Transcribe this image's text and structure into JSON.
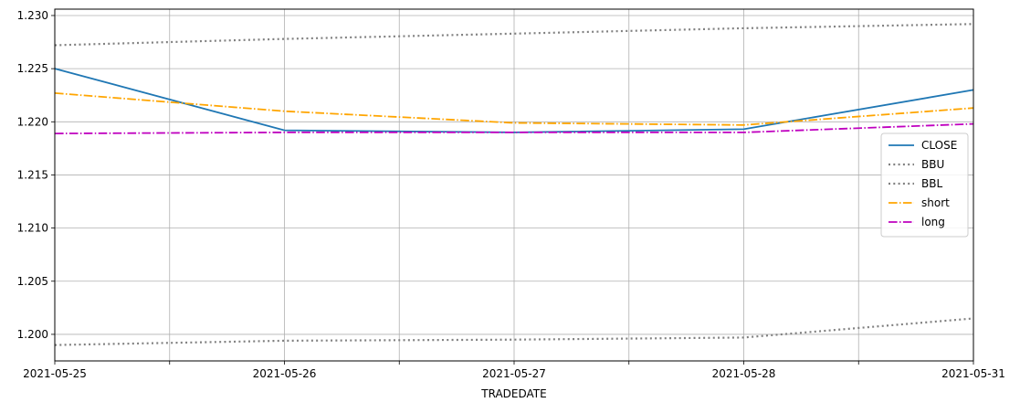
{
  "chart_data": {
    "type": "line",
    "xlabel": "TRADEDATE",
    "x": [
      "2021-05-25",
      "2021-05-26",
      "2021-05-27",
      "2021-05-28",
      "2021-05-31"
    ],
    "x_ticks_labeled": [
      "2021-05-25",
      "2021-05-26",
      "2021-05-27",
      "2021-05-28",
      "2021-05-31"
    ],
    "y_ticks": [
      "1.200",
      "1.205",
      "1.210",
      "1.215",
      "1.220",
      "1.225",
      "1.230"
    ],
    "ylim": [
      1.1975,
      1.2306
    ],
    "grid": true,
    "legend_position": "center-right",
    "series": [
      {
        "name": "CLOSE",
        "color": "#1f77b4",
        "style": "solid",
        "values": [
          1.225,
          1.2192,
          1.219,
          1.2193,
          1.223
        ]
      },
      {
        "name": "BBU",
        "color": "#808080",
        "style": "dotted",
        "values": [
          1.2272,
          1.2278,
          1.2283,
          1.2288,
          1.2292
        ]
      },
      {
        "name": "BBL",
        "color": "#808080",
        "style": "dotted",
        "values": [
          1.199,
          1.1994,
          1.1995,
          1.1997,
          1.2015
        ]
      },
      {
        "name": "short",
        "color": "#ffa500",
        "style": "dashdot",
        "values": [
          1.2227,
          1.221,
          1.2199,
          1.2197,
          1.2213
        ]
      },
      {
        "name": "long",
        "color": "#bf00bf",
        "style": "dashdot",
        "values": [
          1.2189,
          1.219,
          1.219,
          1.219,
          1.2198
        ]
      }
    ]
  }
}
